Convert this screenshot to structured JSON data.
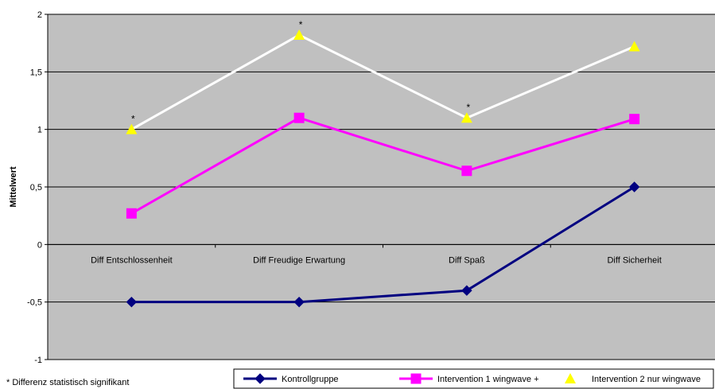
{
  "chart_data": {
    "type": "line",
    "title": "",
    "xlabel": "",
    "ylabel": "Mittelwert",
    "categories": [
      "Diff Entschlossenheit",
      "Diff Freudige Erwartung",
      "Diff Spaß",
      "Diff Sicherheit"
    ],
    "ylim": [
      -1,
      2
    ],
    "yticks": [
      2,
      1.5,
      1,
      0.5,
      0,
      -0.5,
      -1
    ],
    "ytick_labels": [
      "2",
      "1,5",
      "1",
      "0,5",
      "0",
      "-0,5",
      "-1"
    ],
    "grid": true,
    "plot_background": "#c0c0c0",
    "legend_position": "bottom",
    "series": [
      {
        "name": "Kontrollgruppe",
        "values": [
          -0.5,
          -0.5,
          -0.4,
          0.5
        ],
        "color": "#000080",
        "line_color": "#000080",
        "marker": "diamond"
      },
      {
        "name": "Intervention 1 wingwave +",
        "values": [
          0.27,
          1.1,
          0.64,
          1.09
        ],
        "color": "#ff00ff",
        "line_color": "#ff00ff",
        "marker": "square"
      },
      {
        "name": "Intervention 2 nur wingwave",
        "values": [
          1.0,
          1.82,
          1.1,
          1.72
        ],
        "color": "#ffff00",
        "line_color": "#ffffff",
        "marker": "triangle"
      }
    ],
    "annotations": [
      {
        "series": 2,
        "index": 0,
        "text": "*"
      },
      {
        "series": 2,
        "index": 1,
        "text": "*"
      },
      {
        "series": 2,
        "index": 2,
        "text": "*"
      }
    ],
    "footnote": "* Differenz statistisch signifikant"
  }
}
